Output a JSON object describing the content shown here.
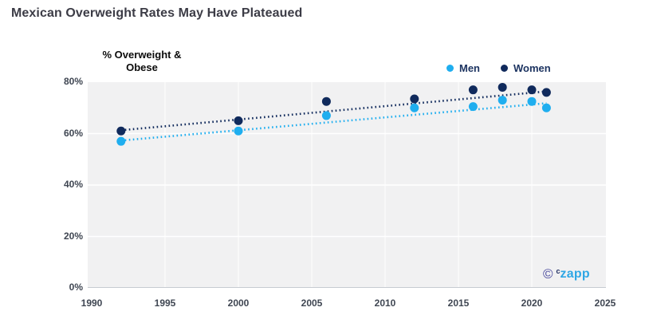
{
  "title": "Mexican Overweight Rates May Have Plateaued",
  "y_axis_title": {
    "line1": "% Overweight &",
    "line2": "Obese"
  },
  "legend": {
    "items": [
      {
        "label": "Men",
        "color": "#1FAEEF"
      },
      {
        "label": "Women",
        "color": "#102A5C"
      }
    ]
  },
  "watermark": {
    "copyright_symbol": "©",
    "superscript": "c",
    "brand": "zapp"
  },
  "chart_data": {
    "type": "scatter",
    "title": "Mexican Overweight Rates May Have Plateaued",
    "xlabel": "",
    "ylabel": "% Overweight & Obese",
    "x": [
      1992,
      2000,
      2006,
      2012,
      2016,
      2018,
      2020,
      2021
    ],
    "series": [
      {
        "name": "Men",
        "color": "#1FAEEF",
        "values": [
          57,
          61,
          67,
          70,
          70.5,
          73,
          72.5,
          70
        ]
      },
      {
        "name": "Women",
        "color": "#102A5C",
        "values": [
          61,
          65,
          72.5,
          73.5,
          77,
          78,
          77,
          76
        ]
      }
    ],
    "trendlines": [
      {
        "name": "Men trend",
        "style": "dotted",
        "color": "#1FAEEF",
        "x": [
          1992,
          2021
        ],
        "y": [
          57.3,
          71.8
        ]
      },
      {
        "name": "Women trend",
        "style": "dotted",
        "color": "#102A5C",
        "x": [
          1992,
          2021
        ],
        "y": [
          61.3,
          76.4
        ]
      }
    ],
    "xlim": [
      1990,
      2025
    ],
    "ylim": [
      0,
      80
    ],
    "x_ticks": [
      1990,
      1995,
      2000,
      2005,
      2010,
      2015,
      2020,
      2025
    ],
    "y_ticks": [
      "0%",
      "20%",
      "40%",
      "60%",
      "80%"
    ],
    "grid": true,
    "legend_position": "top-right",
    "plot_background": "#F1F1F2",
    "gridline_color": "#FFFFFF"
  }
}
